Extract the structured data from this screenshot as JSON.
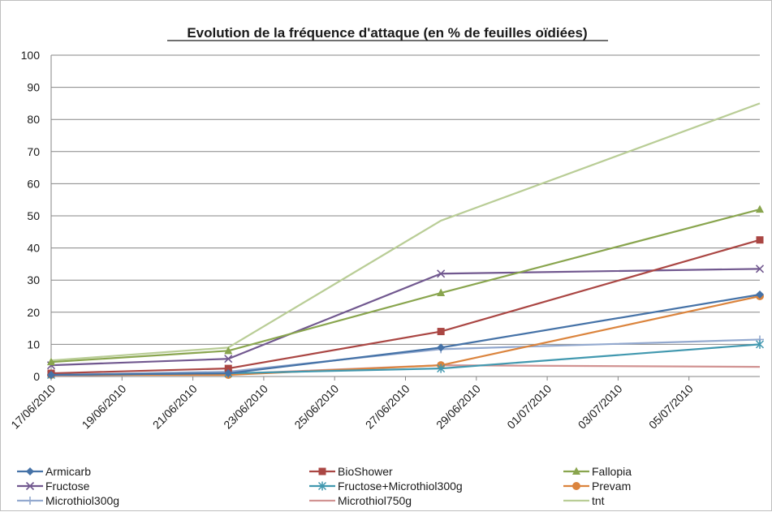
{
  "chart_data": {
    "type": "line",
    "title": "Evolution de la fréquence d'attaque (en % de feuilles oïdiées)",
    "xlabel": "",
    "ylabel": "",
    "ylim": [
      0,
      100
    ],
    "yticks": [
      0,
      10,
      20,
      30,
      40,
      50,
      60,
      70,
      80,
      90,
      100
    ],
    "x_axis_type": "date",
    "xlim": [
      "2010-06-17",
      "2010-07-07"
    ],
    "xtick_labels": [
      "17/06/2010",
      "19/06/2010",
      "21/06/2010",
      "23/06/2010",
      "25/06/2010",
      "27/06/2010",
      "29/06/2010",
      "01/07/2010",
      "03/07/2010",
      "05/07/2010"
    ],
    "grid": "horizontal",
    "legend_position": "bottom",
    "x": [
      "2010-06-17",
      "2010-06-22",
      "2010-06-28",
      "2010-07-07"
    ],
    "series": [
      {
        "name": "Armicarb",
        "color": "#4572a7",
        "marker": "diamond",
        "values": [
          0.5,
          1.0,
          9.0,
          25.5
        ]
      },
      {
        "name": "BioShower",
        "color": "#aa4643",
        "marker": "square",
        "values": [
          1.0,
          2.5,
          14.0,
          42.5
        ]
      },
      {
        "name": "Fallopia",
        "color": "#89a54e",
        "marker": "triangle",
        "values": [
          4.5,
          8.0,
          26.0,
          52.0
        ]
      },
      {
        "name": "Fructose",
        "color": "#71588f",
        "marker": "x",
        "values": [
          3.5,
          5.5,
          32.0,
          33.5
        ]
      },
      {
        "name": "Fructose+Microthiol300g",
        "color": "#4198af",
        "marker": "star",
        "values": [
          0.5,
          1.0,
          2.5,
          10.0
        ]
      },
      {
        "name": "Prevam",
        "color": "#db843d",
        "marker": "circle",
        "values": [
          0.5,
          0.5,
          3.5,
          25.0
        ]
      },
      {
        "name": "Microthiol300g",
        "color": "#93a9cf",
        "marker": "plus",
        "values": [
          0.5,
          1.5,
          8.5,
          11.5
        ]
      },
      {
        "name": "Microthiol750g",
        "color": "#d19392",
        "marker": "none",
        "values": [
          0.3,
          0.8,
          3.5,
          3.0
        ]
      },
      {
        "name": "tnt",
        "color": "#b9cd96",
        "marker": "none",
        "values": [
          5.0,
          9.0,
          48.5,
          85.0
        ]
      }
    ]
  }
}
